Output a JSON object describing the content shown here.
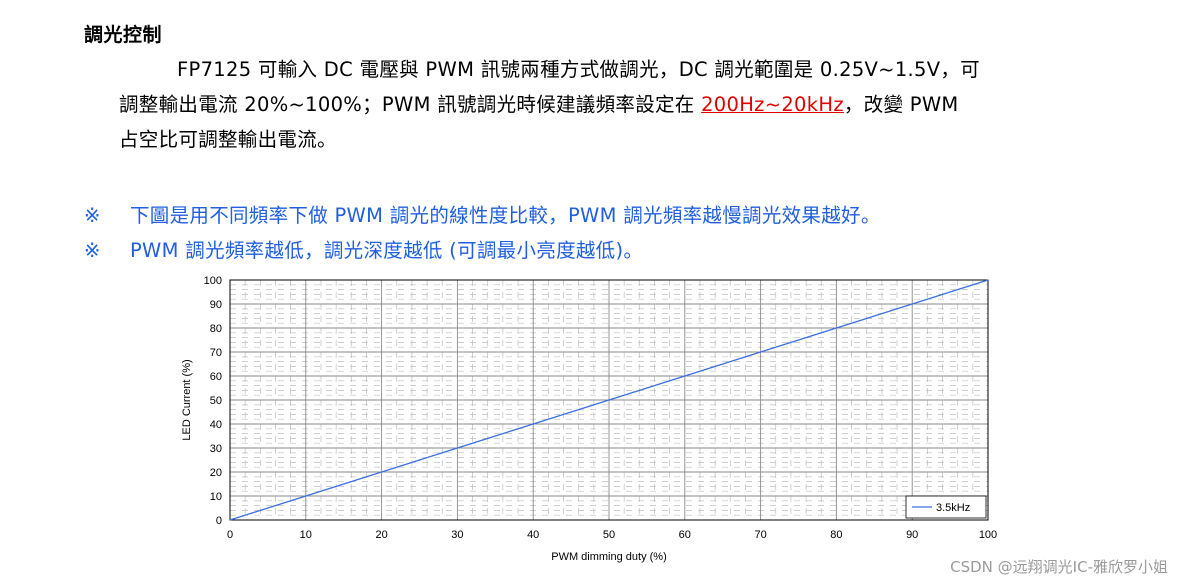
{
  "section": {
    "heading": "調光控制",
    "para_line1_a": "FP7125 可輸入 DC 電壓與 PWM 訊號兩種方式做調光，DC 調光範圍是 0.25V~1.5V，可",
    "para_line2_a": "調整輸出電流  20%~100%；PWM  訊號調光時候建議頻率設定在 ",
    "para_highlight": "200Hz~20kHz",
    "para_line2_b": "，改變  PWM",
    "para_line3": "占空比可調整輸出電流。"
  },
  "notes": [
    {
      "mark": "※",
      "text": "下圖是用不同頻率下做 PWM 調光的線性度比較，PWM 調光頻率越慢調光效果越好。"
    },
    {
      "mark": "※",
      "text": "PWM 調光頻率越低，調光深度越低  (可調最小亮度越低)。"
    }
  ],
  "chart_data": {
    "type": "line",
    "xlabel": "PWM dimming duty (%)",
    "ylabel": "LED Current (%)",
    "xlim": [
      0,
      100
    ],
    "ylim": [
      0,
      100
    ],
    "x_ticks": [
      "0",
      "10",
      "20",
      "30",
      "40",
      "50",
      "60",
      "70",
      "80",
      "90",
      "100"
    ],
    "y_ticks": [
      "0",
      "10",
      "20",
      "30",
      "40",
      "50",
      "60",
      "70",
      "80",
      "90",
      "100"
    ],
    "grid": true,
    "legend_position": "bottom-right",
    "series": [
      {
        "name": "3.5kHz",
        "color": "#3b6fe0",
        "x": [
          0,
          10,
          20,
          30,
          40,
          50,
          60,
          70,
          80,
          90,
          100
        ],
        "y": [
          0,
          10,
          20,
          30,
          40,
          50,
          60,
          70,
          80,
          90,
          100
        ]
      }
    ]
  },
  "watermark": "CSDN @远翔调光IC-雅欣罗小姐"
}
